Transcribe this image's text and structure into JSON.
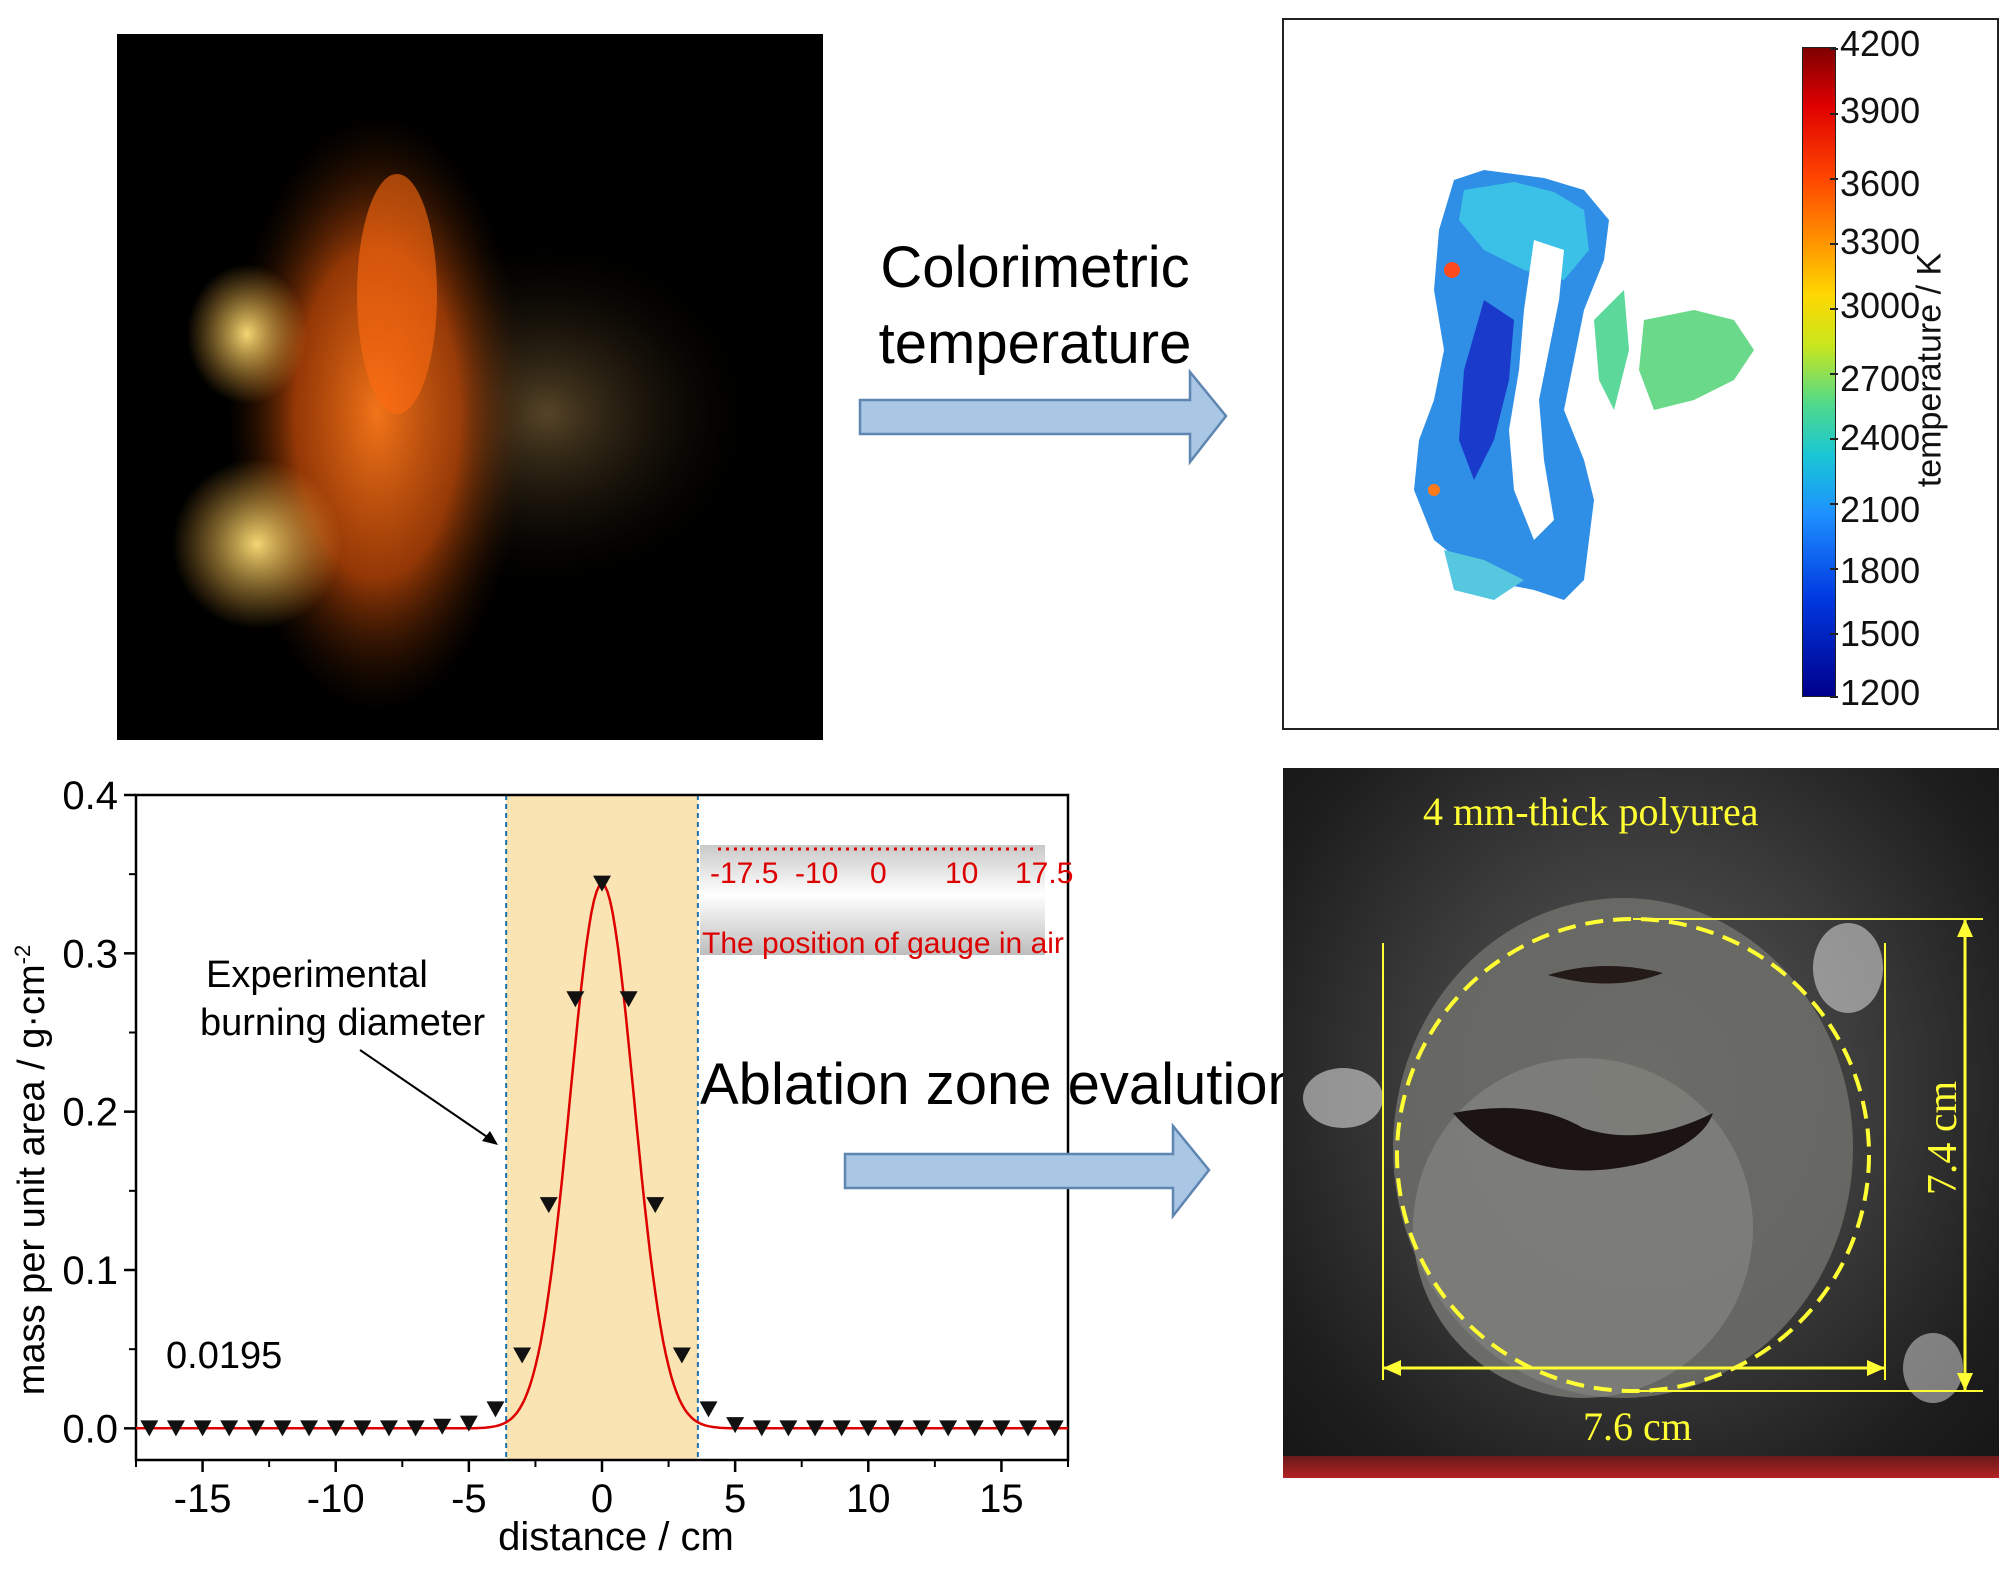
{
  "arrows": {
    "top_label_line1": "Colorimetric",
    "top_label_line2": "temperature",
    "bottom_label": "Ablation zone evalution"
  },
  "temperature_map": {
    "colorbar_title": "temperature / K",
    "colorbar_ticks": [
      "4200",
      "3900",
      "3600",
      "3300",
      "3000",
      "2700",
      "2400",
      "2100",
      "1800",
      "1500",
      "1200"
    ]
  },
  "photo": {
    "title": "4 mm-thick polyurea",
    "width_label": "7.6 cm",
    "height_label": "7.4 cm",
    "colors": {
      "annotation": "#ffff33"
    }
  },
  "chart_data": {
    "type": "scatter",
    "xlabel": "distance / cm",
    "ylabel": "mass per unit area / g·cm",
    "ylabel_superscript": "-2",
    "xlim": [
      -17.5,
      17.5
    ],
    "ylim": [
      -0.02,
      0.4
    ],
    "x_ticks": [
      "-15",
      "-10",
      "-5",
      "0",
      "5",
      "10",
      "15"
    ],
    "y_ticks": [
      "0.0",
      "0.1",
      "0.2",
      "0.3",
      "0.4"
    ],
    "baseline_annotation": "0.0195",
    "shaded_region": [
      -3.6,
      3.6
    ],
    "callout_line1": "Experimental",
    "callout_line2": "burning diameter",
    "inset": {
      "scale_labels": [
        "-17.5",
        "-10",
        "0",
        "10",
        "17.5"
      ],
      "caption": "The position of gauge in air"
    },
    "series": [
      {
        "style": "markers",
        "x": [
          -17,
          -16,
          -15,
          -14,
          -13,
          -12,
          -11,
          -10,
          -9,
          -8,
          -7,
          -6,
          -5,
          -4,
          -3,
          -2,
          -1,
          0,
          1,
          2,
          3,
          4,
          5,
          6,
          7,
          8,
          9,
          10,
          11,
          12,
          13,
          14,
          15,
          16,
          17
        ],
        "y": [
          0.0,
          0.0,
          0.0,
          0.0,
          0.0,
          0.0,
          0.0,
          0.0,
          0.0,
          0.0,
          0.0,
          0.001,
          0.003,
          0.012,
          0.046,
          0.141,
          0.271,
          0.344,
          0.271,
          0.141,
          0.046,
          0.012,
          0.002,
          0.0,
          0.0,
          0.0,
          0.0,
          0.0,
          0.0,
          0.0,
          0.0,
          0.0,
          0.0,
          0.0,
          0.0
        ]
      },
      {
        "style": "line",
        "fit": "gaussian",
        "amplitude": 0.344,
        "sigma": 1.2,
        "center": 0
      }
    ],
    "colors": {
      "fit": "#dd0000",
      "shade": "#fbe4b3",
      "border": "#1f6fa8",
      "inset_text": "#dd0000"
    }
  }
}
